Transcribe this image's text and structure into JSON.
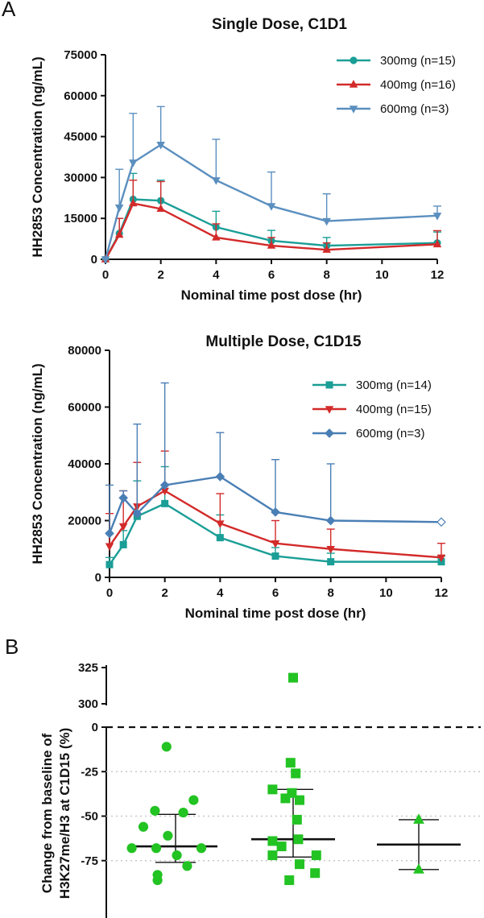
{
  "panels": {
    "a": "A",
    "b": "B"
  },
  "chart_data": [
    {
      "type": "line",
      "title": "Single Dose, C1D1",
      "xlabel": "Nominal time post dose (hr)",
      "ylabel": "HH2853 Concentration (ng/mL)",
      "x": [
        0,
        0.5,
        1,
        2,
        4,
        6,
        8,
        12
      ],
      "xlim": [
        0,
        12
      ],
      "ylim": [
        0,
        75000
      ],
      "xticks": [
        "0",
        "2",
        "4",
        "6",
        "8",
        "10",
        "12"
      ],
      "yticks": [
        "0",
        "15000",
        "30000",
        "45000",
        "60000",
        "75000"
      ],
      "legend": "top-right",
      "series": [
        {
          "name": "300mg (n=15)",
          "color": "#1a9e96",
          "marker": "circle",
          "values": [
            0,
            9500,
            22000,
            21500,
            11800,
            6800,
            5000,
            6000
          ],
          "err": [
            0,
            5500,
            9500,
            7500,
            5800,
            3800,
            3000,
            4000
          ]
        },
        {
          "name": "400mg (n=16)",
          "color": "#d32a2a",
          "marker": "triangle-up",
          "values": [
            0,
            9000,
            20500,
            18500,
            8000,
            5000,
            3500,
            5500
          ],
          "err": [
            0,
            6000,
            8500,
            10000,
            5000,
            3000,
            2500,
            5000
          ]
        },
        {
          "name": "600mg (n=3)",
          "color": "#5b8fbf",
          "marker": "triangle-down",
          "values": [
            0,
            19000,
            35500,
            42000,
            29000,
            19500,
            14000,
            16000
          ],
          "err": [
            0,
            14000,
            18000,
            14000,
            15000,
            12500,
            10000,
            3500
          ]
        }
      ]
    },
    {
      "type": "line",
      "title": "Multiple Dose, C1D15",
      "xlabel": "Nominal time post dose (hr)",
      "ylabel": "HH2853 Concentration (ng/mL)",
      "x": [
        0,
        0.5,
        1,
        2,
        4,
        6,
        8,
        12
      ],
      "xlim": [
        0,
        12
      ],
      "ylim": [
        0,
        80000
      ],
      "xticks": [
        "0",
        "2",
        "4",
        "6",
        "8",
        "10",
        "12"
      ],
      "yticks": [
        "0",
        "20000",
        "40000",
        "60000",
        "80000"
      ],
      "legend": "top-right",
      "series": [
        {
          "name": "300mg (n=14)",
          "color": "#1a9e96",
          "marker": "square",
          "values": [
            4500,
            11500,
            21500,
            26000,
            14000,
            7500,
            5500,
            5500
          ],
          "err": [
            2500,
            5000,
            12500,
            13000,
            8000,
            3000,
            3000,
            2000
          ]
        },
        {
          "name": "400mg (n=15)",
          "color": "#d32a2a",
          "marker": "triangle-down",
          "values": [
            11000,
            18000,
            25000,
            30500,
            19000,
            12000,
            10000,
            7000
          ],
          "err": [
            11500,
            12500,
            15500,
            14000,
            10500,
            8000,
            7000,
            5000
          ]
        },
        {
          "name": "600mg (n=3)",
          "color": "#4a7fb5",
          "marker": "diamond",
          "values": [
            15500,
            28000,
            22500,
            32500,
            35500,
            23000,
            20000,
            19500
          ],
          "err": [
            17000,
            2500,
            31500,
            36000,
            15500,
            18500,
            20000,
            0
          ]
        }
      ]
    },
    {
      "type": "scatter",
      "ylabel": "Change from baseline of H3K27me/H3 at C1D15 (%)",
      "yticks_upper": [
        "300",
        "325"
      ],
      "yticks_lower": [
        "0",
        "-25",
        "-50",
        "-75"
      ],
      "color": "#22c322",
      "groups": [
        {
          "marker": "circle",
          "mean": -67,
          "sd_upper": -49,
          "sd_lower": -76,
          "points": [
            -11,
            -41,
            -47,
            -48,
            -56,
            -61,
            -68,
            -68,
            -68,
            -72,
            -78,
            -83,
            -86
          ]
        },
        {
          "marker": "square",
          "mean": -63,
          "sd_upper": -35,
          "sd_lower": -73,
          "break_points": [
            318
          ],
          "points": [
            -20,
            -26,
            -35,
            -37,
            -40,
            -41,
            -52,
            -63,
            -64,
            -67,
            -72,
            -72,
            -77,
            -82,
            -86
          ]
        },
        {
          "marker": "triangle-up",
          "mean": -66,
          "sd_upper": -52,
          "sd_lower": -80,
          "points": [
            -52,
            -80
          ]
        }
      ]
    }
  ]
}
